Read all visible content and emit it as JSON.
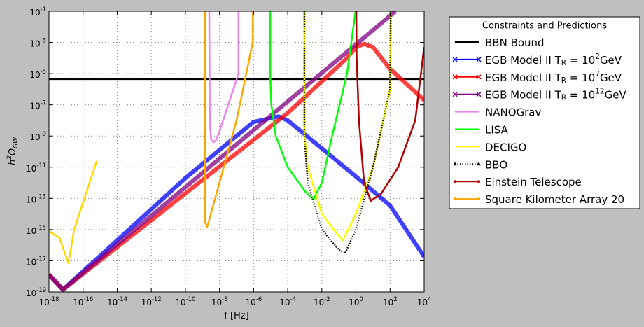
{
  "chart_data": {
    "type": "line",
    "xlabel": "f [Hz]",
    "ylabel": "h^{2}Ω_{GW}",
    "xscale": "log",
    "yscale": "log",
    "grid": true,
    "xlim": [
      1e-18,
      10000.0
    ],
    "ylim": [
      1e-19,
      0.1
    ],
    "xticks": [
      {
        "value": 1e-18,
        "label": "10^{-18}"
      },
      {
        "value": 1e-16,
        "label": "10^{-16}"
      },
      {
        "value": 1e-14,
        "label": "10^{-14}"
      },
      {
        "value": 1e-12,
        "label": "10^{-12}"
      },
      {
        "value": 1e-10,
        "label": "10^{-10}"
      },
      {
        "value": 1e-08,
        "label": "10^{-8}"
      },
      {
        "value": 1e-06,
        "label": "10^{-6}"
      },
      {
        "value": 0.0001,
        "label": "10^{-4}"
      },
      {
        "value": 0.01,
        "label": "10^{-2}"
      },
      {
        "value": 1,
        "label": "10^{0}"
      },
      {
        "value": 100,
        "label": "10^{2}"
      },
      {
        "value": 10000,
        "label": "10^{4}"
      }
    ],
    "yticks": [
      {
        "value": 1e-19,
        "label": "10^{-19}"
      },
      {
        "value": 1e-17,
        "label": "10^{-17}"
      },
      {
        "value": 1e-15,
        "label": "10^{-15}"
      },
      {
        "value": 1e-13,
        "label": "10^{-13}"
      },
      {
        "value": 1e-11,
        "label": "10^{-11}"
      },
      {
        "value": 1e-09,
        "label": "10^{-9}"
      },
      {
        "value": 1e-07,
        "label": "10^{-7}"
      },
      {
        "value": 1e-05,
        "label": "10^{-5}"
      },
      {
        "value": 0.001,
        "label": "10^{-3}"
      },
      {
        "value": 0.1,
        "label": "10^{-1}"
      }
    ],
    "legend_title": "Constraints and Predictions",
    "legend_position": "outside-right",
    "series": [
      {
        "name": "BBN Bound",
        "color": "#000000",
        "linestyle": "solid",
        "marker": "none",
        "x": [
          1e-18,
          10000.0
        ],
        "values": [
          4.5e-06,
          4.5e-06
        ]
      },
      {
        "name": "EGB Model II T_{R} = 10^{2}GeV",
        "color": "#0000ff",
        "linestyle": "solid",
        "marker": "x",
        "x": [
          1e-18,
          6.6e-18,
          1e-10,
          1e-06,
          2.9e-05,
          0.0001,
          0.01,
          1,
          100,
          10000.0
        ],
        "values": [
          1.3e-18,
          1.4e-19,
          2e-12,
          8e-09,
          1.8e-08,
          1e-08,
          1.6e-10,
          2.5e-12,
          3.5e-14,
          1.8e-17
        ]
      },
      {
        "name": "EGB Model II T_{R} = 10^{7}GeV",
        "color": "#ff0000",
        "linestyle": "solid",
        "marker": "x",
        "x": [
          1e-18,
          6.6e-18,
          0.0001,
          0.3,
          1,
          3,
          10,
          100,
          10000.0
        ],
        "values": [
          1.3e-18,
          1.4e-19,
          3e-08,
          0.0001,
          0.0005,
          0.0008,
          0.0005,
          2e-05,
          2e-07
        ]
      },
      {
        "name": "EGB Model II T_{R} = 10^{12}GeV",
        "color": "#800080",
        "linestyle": "solid",
        "marker": "x",
        "x": [
          1e-18,
          6.6e-18,
          210
        ],
        "values": [
          1.3e-18,
          1.4e-19,
          0.1
        ]
      },
      {
        "name": "NANOGrav",
        "color": "#ee82ee",
        "linestyle": "solid",
        "marker": "none",
        "x": [
          2.5e-09,
          2.7e-09,
          3.2e-09,
          4.5e-09,
          6e-09,
          1e-08,
          1.3e-07,
          1.3e-07
        ],
        "values": [
          0.1,
          1e-08,
          6e-10,
          4e-10,
          5e-10,
          2e-09,
          1e-05,
          0.1
        ]
      },
      {
        "name": "LISA",
        "color": "#00ff00",
        "linestyle": "solid",
        "marker": "none",
        "x": [
          9.3e-06,
          9.3e-06,
          1.1e-05,
          2e-05,
          0.0001,
          0.001,
          0.0032,
          0.01,
          0.04,
          0.3,
          0.95
        ],
        "values": [
          0.1,
          1e-05,
          1e-07,
          1e-09,
          1e-11,
          3e-13,
          8.5e-14,
          1e-12,
          1e-09,
          1e-05,
          0.1
        ]
      },
      {
        "name": "DECIGO",
        "color": "#ffff00",
        "linestyle": "solid",
        "marker": "none",
        "x": [
          0.00095,
          0.00095,
          0.0015,
          0.01,
          0.05,
          0.17,
          1,
          10,
          100,
          110
        ],
        "values": [
          0.1,
          1e-09,
          1e-11,
          1e-14,
          1e-15,
          2e-16,
          1e-14,
          1e-11,
          1e-06,
          0.1
        ]
      },
      {
        "name": "BBO",
        "color": "#000000",
        "linestyle": "dotted",
        "marker": "^",
        "x": [
          0.00095,
          0.00095,
          0.0015,
          0.01,
          0.1,
          0.23,
          1,
          10,
          100,
          110
        ],
        "values": [
          0.1,
          1e-09,
          1e-12,
          1e-15,
          5e-17,
          3e-17,
          1e-15,
          1e-11,
          1e-06,
          0.1
        ]
      },
      {
        "name": "Einstein Telescope",
        "color": "#b00000",
        "linestyle": "solid",
        "marker": "o",
        "x": [
          1.05,
          1.1,
          1.5,
          3,
          7.5,
          30,
          300,
          3000,
          10000
        ],
        "values": [
          0.1,
          0.0001,
          1e-08,
          1e-12,
          7e-14,
          2e-13,
          1e-11,
          1e-08,
          0.0005
        ]
      },
      {
        "name": "Square Kilometer Array 20",
        "color": "#ffa500",
        "linestyle": "solid",
        "marker": "o",
        "x": [
          1.4e-09,
          1.4e-09,
          1.9e-09,
          1e-08,
          1e-07,
          8.9e-07,
          8.9e-07
        ],
        "values": [
          0.1,
          3e-15,
          1.5e-15,
          1e-12,
          1e-08,
          0.001,
          0.1
        ]
      },
      {
        "color": "#ffd700",
        "linestyle": "solid",
        "marker": "none",
        "x": [
          1e-18,
          4.2e-18,
          1.4e-17,
          3e-17,
          6.3e-16
        ],
        "values": [
          8e-16,
          2.9e-16,
          7e-18,
          1e-15,
          2.5e-11
        ]
      }
    ]
  }
}
